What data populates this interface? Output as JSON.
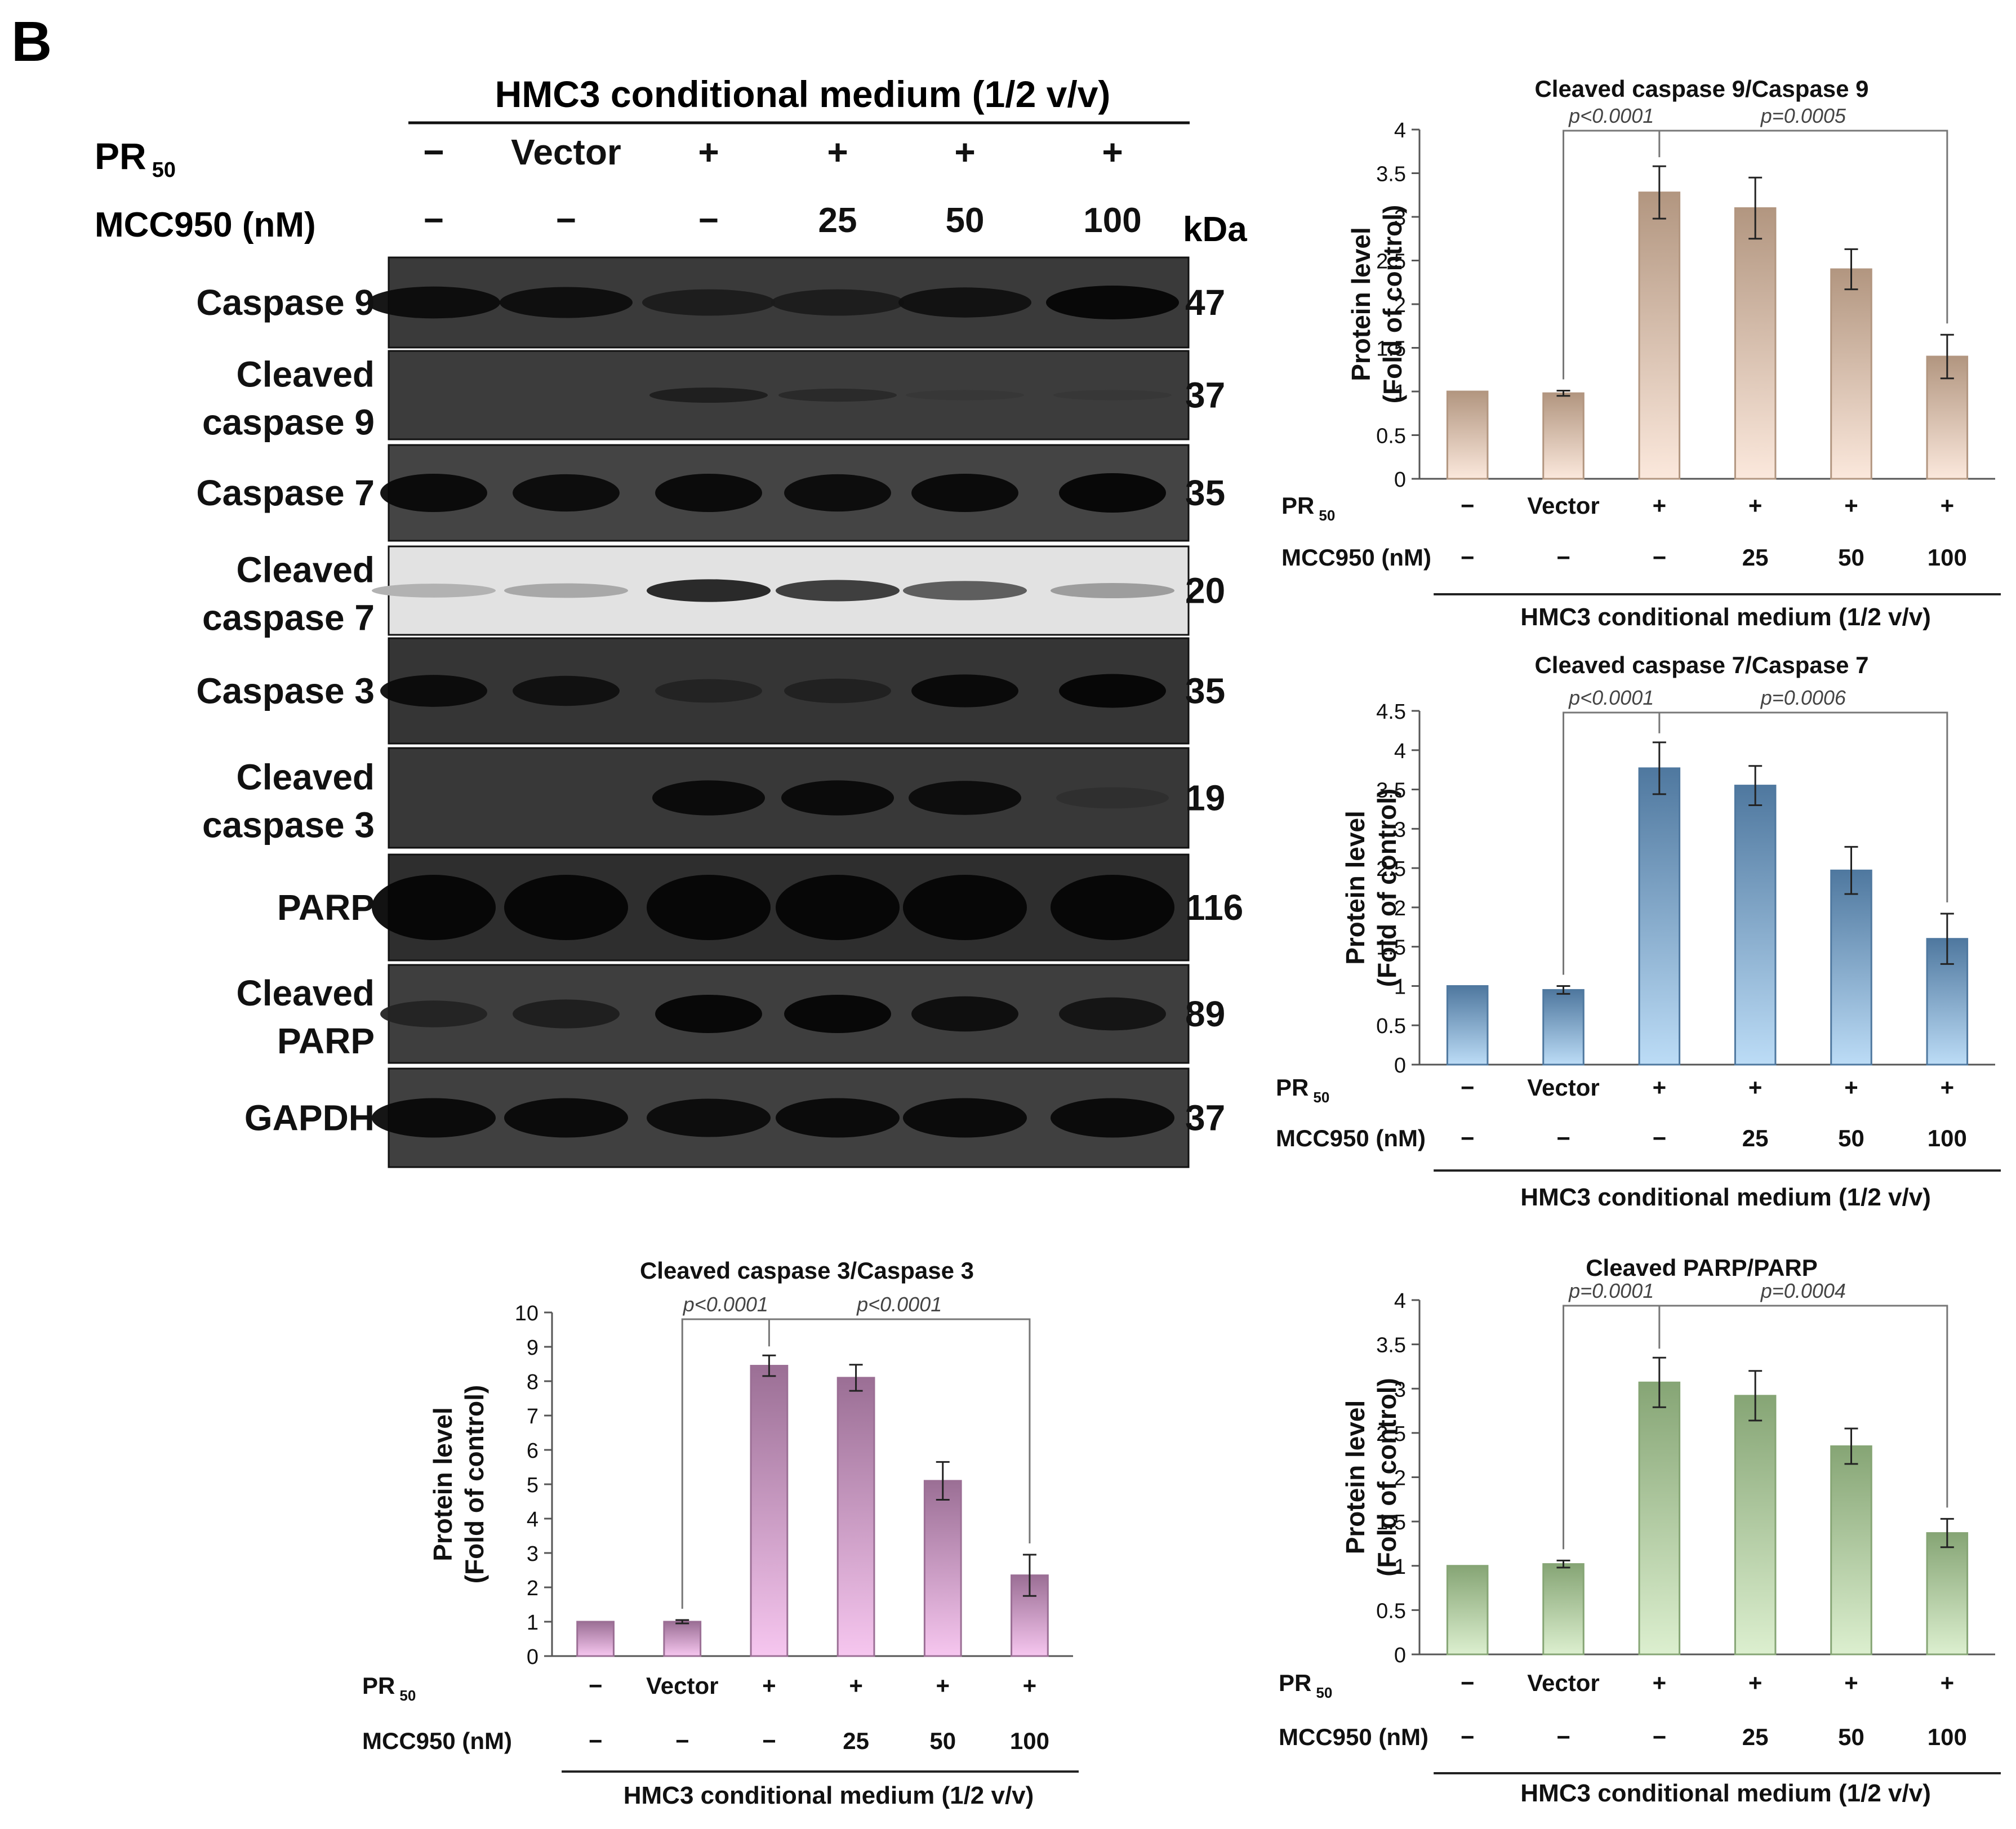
{
  "panel_letter": "B",
  "blot": {
    "header": "HMC3 conditional medium (1/2 v/v)",
    "row1_label": "PR",
    "row1_sub": "50",
    "row1_values": [
      "−",
      "Vector",
      "+",
      "+",
      "+",
      "+"
    ],
    "row2_label": "MCC950 (nM)",
    "row2_values": [
      "−",
      "−",
      "−",
      "25",
      "50",
      "100"
    ],
    "kda_label": "kDa",
    "strips": [
      {
        "name": [
          "Caspase 9"
        ],
        "kda": "47",
        "bg": "#3a3a3a",
        "intensity": [
          0.9,
          0.85,
          0.6,
          0.6,
          0.8,
          1.0
        ]
      },
      {
        "name": [
          "Cleaved",
          "caspase 9"
        ],
        "kda": "37",
        "bg": "#3c3c3c",
        "intensity": [
          0.0,
          0.0,
          0.55,
          0.35,
          0.1,
          0.1
        ]
      },
      {
        "name": [
          "Caspase 7"
        ],
        "kda": "35",
        "bg": "#444444",
        "intensity": [
          0.95,
          0.9,
          0.95,
          0.9,
          0.95,
          1.0
        ]
      },
      {
        "name": [
          "Cleaved",
          "caspase 7"
        ],
        "kda": "20",
        "bg": "#e2e2e2",
        "intensity": [
          0.2,
          0.25,
          0.85,
          0.75,
          0.6,
          0.3
        ]
      },
      {
        "name": [
          "Caspase 3"
        ],
        "kda": "35",
        "bg": "#353535",
        "intensity": [
          0.9,
          0.8,
          0.45,
          0.5,
          0.95,
          1.0
        ]
      },
      {
        "name": [
          "Cleaved",
          "caspase 3"
        ],
        "kda": "19",
        "bg": "#383838",
        "intensity": [
          0.0,
          0.0,
          0.95,
          0.95,
          0.9,
          0.25
        ]
      },
      {
        "name": [
          "PARP"
        ],
        "kda": "116",
        "bg": "#2e2e2e",
        "intensity": [
          1.0,
          1.0,
          1.0,
          1.0,
          1.0,
          1.0
        ]
      },
      {
        "name": [
          "Cleaved",
          "PARP"
        ],
        "kda": "89",
        "bg": "#3e3e3e",
        "intensity": [
          0.45,
          0.55,
          1.0,
          1.0,
          0.85,
          0.75
        ]
      },
      {
        "name": [
          "GAPDH"
        ],
        "kda": "37",
        "bg": "#404040",
        "intensity": [
          0.95,
          0.95,
          0.9,
          0.95,
          0.95,
          0.95
        ]
      }
    ]
  },
  "chart_data": [
    {
      "type": "bar",
      "title": "Cleaved caspase 9/Caspase 9",
      "ylabel": [
        "Protein level",
        "(Fold of control)"
      ],
      "ylim": [
        0,
        4
      ],
      "yticks": [
        "0",
        "0.5",
        "1",
        "1.5",
        "2",
        "2.5",
        "3",
        "3.5",
        "4"
      ],
      "values": [
        1.0,
        0.98,
        3.28,
        3.1,
        2.4,
        1.4
      ],
      "errors": [
        0,
        0.03,
        0.3,
        0.35,
        0.23,
        0.25
      ],
      "color_top": "#b29680",
      "color_bottom": "#fbe8dc",
      "pvals": [
        "p<0.0001",
        "p=0.0005"
      ],
      "row1_label": "PR",
      "row1_sub": "50",
      "row1": [
        "−",
        "Vector",
        "+",
        "+",
        "+",
        "+"
      ],
      "row2_label": "MCC950 (nM)",
      "row2": [
        "−",
        "−",
        "−",
        "25",
        "50",
        "100"
      ],
      "footer": "HMC3 conditional medium (1/2 v/v)"
    },
    {
      "type": "bar",
      "title": "Cleaved caspase 7/Caspase 7",
      "ylabel": [
        "Protein level",
        "(Fold of control)"
      ],
      "ylim": [
        0,
        4.5
      ],
      "yticks": [
        "0",
        "0.5",
        "1",
        "1.5",
        "2",
        "2.5",
        "3",
        "3.5",
        "4",
        "4.5"
      ],
      "values": [
        1.0,
        0.95,
        3.77,
        3.55,
        2.47,
        1.6
      ],
      "errors": [
        0,
        0.05,
        0.33,
        0.25,
        0.3,
        0.32
      ],
      "color_top": "#4f789f",
      "color_bottom": "#bcdcf6",
      "pvals": [
        "p<0.0001",
        "p=0.0006"
      ],
      "row1_label": "PR",
      "row1_sub": "50",
      "row1": [
        "−",
        "Vector",
        "+",
        "+",
        "+",
        "+"
      ],
      "row2_label": "MCC950 (nM)",
      "row2": [
        "−",
        "−",
        "−",
        "25",
        "50",
        "100"
      ],
      "footer": "HMC3 conditional medium (1/2 v/v)"
    },
    {
      "type": "bar",
      "title": "Cleaved caspase 3/Caspase 3",
      "ylabel": [
        "Protein level",
        "(Fold of control)"
      ],
      "ylim": [
        0,
        10
      ],
      "yticks": [
        "0",
        "1",
        "2",
        "3",
        "4",
        "5",
        "6",
        "7",
        "8",
        "9",
        "10"
      ],
      "values": [
        1.0,
        1.0,
        8.45,
        8.1,
        5.1,
        2.35
      ],
      "errors": [
        0,
        0.05,
        0.3,
        0.38,
        0.55,
        0.6
      ],
      "color_top": "#9b6f95",
      "color_bottom": "#f6c6ef",
      "pvals": [
        "p<0.0001",
        "p<0.0001"
      ],
      "row1_label": "PR",
      "row1_sub": "50",
      "row1": [
        "−",
        "Vector",
        "+",
        "+",
        "+",
        "+"
      ],
      "row2_label": "MCC950 (nM)",
      "row2": [
        "−",
        "−",
        "−",
        "25",
        "50",
        "100"
      ],
      "footer": "HMC3 conditional medium (1/2 v/v)"
    },
    {
      "type": "bar",
      "title": "Cleaved PARP/PARP",
      "ylabel": [
        "Protein level",
        "(Fold of control)"
      ],
      "ylim": [
        0,
        4
      ],
      "yticks": [
        "0",
        "0.5",
        "1",
        "1.5",
        "2",
        "2.5",
        "3",
        "3.5",
        "4"
      ],
      "values": [
        1.0,
        1.02,
        3.07,
        2.92,
        2.35,
        1.37
      ],
      "errors": [
        0,
        0.04,
        0.28,
        0.28,
        0.2,
        0.16
      ],
      "color_top": "#86a575",
      "color_bottom": "#dcefcf",
      "pvals": [
        "p=0.0001",
        "p=0.0004"
      ],
      "row1_label": "PR",
      "row1_sub": "50",
      "row1": [
        "−",
        "Vector",
        "+",
        "+",
        "+",
        "+"
      ],
      "row2_label": "MCC950 (nM)",
      "row2": [
        "−",
        "−",
        "−",
        "25",
        "50",
        "100"
      ],
      "footer": "HMC3 conditional medium (1/2 v/v)"
    }
  ]
}
